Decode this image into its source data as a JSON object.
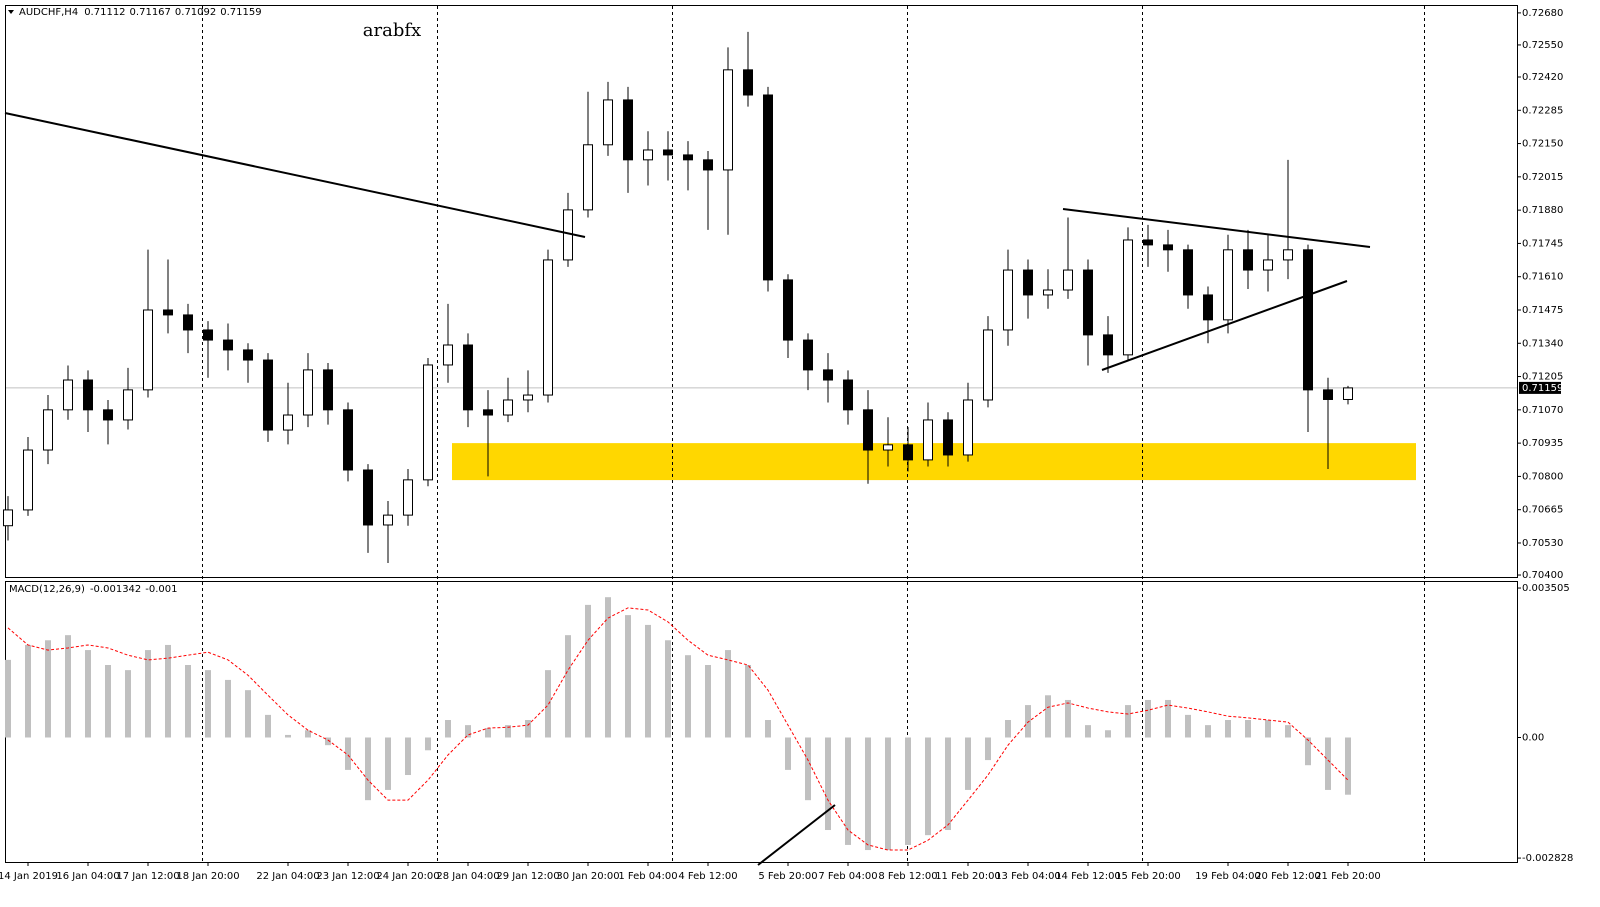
{
  "chart_data": [
    {
      "type": "candlestick",
      "symbol": "AUDCHF,H4",
      "annotation": "arabfx",
      "up_color": "#ffffff",
      "down_color": "#000000",
      "line_color": "#000000",
      "zone": [
        0.70785,
        0.70935
      ],
      "zone_color": "#ffd700",
      "ylim": [
        0.70392,
        0.72712
      ],
      "yticks": [
        {
          "value": 0.7268,
          "label": "0.72680"
        },
        {
          "value": 0.7255,
          "label": "0.72550"
        },
        {
          "value": 0.7242,
          "label": "0.72420"
        },
        0.72285,
        {
          "value": 0.7215,
          "label": "0.72150"
        },
        0.72015,
        {
          "value": 0.7188,
          "label": "0.71880"
        },
        0.71745,
        {
          "value": 0.7161,
          "label": "0.71610"
        },
        0.71475,
        {
          "value": 0.7134,
          "label": "0.71340"
        },
        0.71205,
        {
          "value": 0.7107,
          "label": "0.71070"
        },
        0.70935,
        {
          "value": 0.708,
          "label": "0.70800"
        },
        0.70665,
        {
          "value": 0.7053,
          "label": "0.70530"
        },
        {
          "value": 0.704,
          "label": "0.70400"
        }
      ],
      "categories": [
        null,
        "14 Jan 2019",
        null,
        null,
        "16 Jan 04:00",
        null,
        null,
        "17 Jan 12:00",
        null,
        null,
        "18 Jan 20:00",
        null,
        null,
        null,
        "22 Jan 04:00",
        null,
        null,
        "23 Jan 12:00",
        null,
        null,
        "24 Jan 20:00",
        null,
        null,
        "28 Jan 04:00",
        null,
        null,
        "29 Jan 12:00",
        null,
        null,
        "30 Jan 20:00",
        null,
        null,
        "1 Feb 04:00",
        null,
        null,
        "4 Feb 12:00",
        null,
        null,
        null,
        "5 Feb 20:00",
        null,
        null,
        "7 Feb 04:00",
        null,
        null,
        "8 Feb 12:00",
        null,
        null,
        "11 Feb 20:00",
        null,
        null,
        "13 Feb 04:00",
        null,
        null,
        "14 Feb 12:00",
        null,
        null,
        "15 Feb 20:00",
        null,
        null,
        null,
        "19 Feb 04:00",
        null,
        null,
        "20 Feb 12:00",
        null,
        null,
        "21 Feb 20:00"
      ],
      "ohlc": [
        [
          0.706,
          0.7072,
          0.7054,
          0.70664
        ],
        [
          0.70664,
          0.7096,
          0.7064,
          0.70907
        ],
        [
          0.70907,
          0.7113,
          0.7085,
          0.7107
        ],
        [
          0.7107,
          0.7125,
          0.7103,
          0.71191
        ],
        [
          0.71191,
          0.7123,
          0.7098,
          0.7107
        ],
        [
          0.7107,
          0.7111,
          0.7093,
          0.71029
        ],
        [
          0.71029,
          0.7124,
          0.7099,
          0.71151
        ],
        [
          0.71151,
          0.7172,
          0.7112,
          0.71475
        ],
        [
          0.71475,
          0.7168,
          0.7138,
          0.71455
        ],
        [
          0.71455,
          0.715,
          0.713,
          0.71394
        ],
        [
          0.71394,
          0.7143,
          0.712,
          0.71353
        ],
        [
          0.71353,
          0.7142,
          0.7123,
          0.71313
        ],
        [
          0.71313,
          0.7134,
          0.7118,
          0.71272
        ],
        [
          0.71272,
          0.713,
          0.7094,
          0.70988
        ],
        [
          0.70988,
          0.7118,
          0.7093,
          0.71049
        ],
        [
          0.71049,
          0.713,
          0.71,
          0.71232
        ],
        [
          0.71232,
          0.7126,
          0.7101,
          0.7107
        ],
        [
          0.7107,
          0.711,
          0.7078,
          0.70826
        ],
        [
          0.70826,
          0.7085,
          0.7049,
          0.70603
        ],
        [
          0.70603,
          0.707,
          0.70449,
          0.70643
        ],
        [
          0.70643,
          0.7083,
          0.706,
          0.70786
        ],
        [
          0.70786,
          0.7128,
          0.7076,
          0.71252
        ],
        [
          0.71252,
          0.715,
          0.7118,
          0.71333
        ],
        [
          0.71333,
          0.7138,
          0.71,
          0.7107
        ],
        [
          0.7107,
          0.7115,
          0.708,
          0.71049
        ],
        [
          0.71049,
          0.712,
          0.7102,
          0.7111
        ],
        [
          0.7111,
          0.7123,
          0.7106,
          0.7113
        ],
        [
          0.7113,
          0.7172,
          0.711,
          0.71678
        ],
        [
          0.71678,
          0.7195,
          0.7165,
          0.71881
        ],
        [
          0.71881,
          0.7236,
          0.7185,
          0.72145
        ],
        [
          0.72145,
          0.724,
          0.721,
          0.72327
        ],
        [
          0.72327,
          0.7238,
          0.7195,
          0.72084
        ],
        [
          0.72084,
          0.722,
          0.7198,
          0.72124
        ],
        [
          0.72124,
          0.722,
          0.72,
          0.72104
        ],
        [
          0.72104,
          0.7216,
          0.7196,
          0.72084
        ],
        [
          0.72084,
          0.7212,
          0.718,
          0.72043
        ],
        [
          0.72043,
          0.7254,
          0.7178,
          0.72449
        ],
        [
          0.72449,
          0.72603,
          0.723,
          0.72347
        ],
        [
          0.72347,
          0.7238,
          0.7155,
          0.71597
        ],
        [
          0.71597,
          0.7162,
          0.7128,
          0.71353
        ],
        [
          0.71353,
          0.7138,
          0.7115,
          0.71232
        ],
        [
          0.71232,
          0.713,
          0.711,
          0.71191
        ],
        [
          0.71191,
          0.7123,
          0.7101,
          0.7107
        ],
        [
          0.7107,
          0.7115,
          0.7077,
          0.70907
        ],
        [
          0.70907,
          0.7104,
          0.7084,
          0.70928
        ],
        [
          0.70928,
          0.71,
          0.7082,
          0.70867
        ],
        [
          0.70867,
          0.711,
          0.7084,
          0.71029
        ],
        [
          0.71029,
          0.7106,
          0.7084,
          0.70887
        ],
        [
          0.70887,
          0.7118,
          0.7086,
          0.7111
        ],
        [
          0.7111,
          0.7145,
          0.7108,
          0.71394
        ],
        [
          0.71394,
          0.7172,
          0.7133,
          0.71637
        ],
        [
          0.71637,
          0.7168,
          0.7144,
          0.71536
        ],
        [
          0.71536,
          0.7164,
          0.7148,
          0.71556
        ],
        [
          0.71556,
          0.7185,
          0.7152,
          0.71637
        ],
        [
          0.71637,
          0.7168,
          0.7125,
          0.71374
        ],
        [
          0.71374,
          0.7145,
          0.7122,
          0.71293
        ],
        [
          0.71293,
          0.7181,
          0.7127,
          0.71759
        ],
        [
          0.71759,
          0.7182,
          0.7165,
          0.71739
        ],
        [
          0.71739,
          0.718,
          0.7163,
          0.71719
        ],
        [
          0.71719,
          0.7174,
          0.7148,
          0.71536
        ],
        [
          0.71536,
          0.7157,
          0.7134,
          0.71435
        ],
        [
          0.71435,
          0.7178,
          0.7138,
          0.71719
        ],
        [
          0.71719,
          0.718,
          0.7156,
          0.71637
        ],
        [
          0.71637,
          0.7178,
          0.7155,
          0.71678
        ],
        [
          0.71678,
          0.72084,
          0.716,
          0.71719
        ],
        [
          0.71719,
          0.7174,
          0.7098,
          0.71151
        ],
        [
          0.71151,
          0.712,
          0.7083,
          0.71112
        ],
        [
          0.71112,
          0.71167,
          0.71092,
          0.71159
        ]
      ]
    },
    {
      "type": "macd",
      "title": "MACD(12,26,9)",
      "histogram_color": "#c0c0c0",
      "signal_color": "#ff0000",
      "ylim": [
        -0.00292,
        0.00367
      ],
      "yticks": [
        0.003505,
        {
          "value": 0,
          "label": "0.00"
        },
        -0.002828
      ],
      "histogram": [
        0.00182,
        0.00217,
        0.00228,
        0.0024,
        0.00205,
        0.0017,
        0.00158,
        0.00205,
        0.00217,
        0.0017,
        0.00158,
        0.00135,
        0.00111,
        0.00053,
        6e-05,
        0.00017,
        -0.00018,
        -0.00076,
        -0.00147,
        -0.00123,
        -0.00088,
        -0.0003,
        0.00041,
        0.00029,
        0.00022,
        0.00029,
        0.00041,
        0.00158,
        0.0024,
        0.00311,
        0.00329,
        0.00287,
        0.00264,
        0.00228,
        0.00193,
        0.0017,
        0.00205,
        0.0017,
        0.00041,
        -0.00076,
        -0.00147,
        -0.00217,
        -0.00252,
        -0.00264,
        -0.00264,
        -0.00252,
        -0.00229,
        -0.00217,
        -0.00123,
        -0.00053,
        0.00041,
        0.00076,
        0.00099,
        0.00088,
        0.00029,
        0.00017,
        0.00076,
        0.00088,
        0.00088,
        0.00053,
        0.00029,
        0.00041,
        0.00041,
        0.00041,
        0.00029,
        -0.00065,
        -0.00123,
        -0.001342
      ],
      "signal": [
        0.00257,
        0.00217,
        0.00205,
        0.0021,
        0.00217,
        0.0021,
        0.00193,
        0.00182,
        0.00186,
        0.00193,
        0.002,
        0.00182,
        0.00146,
        0.00099,
        0.00053,
        0.00017,
        -6e-05,
        -0.00041,
        -0.001,
        -0.00147,
        -0.00147,
        -0.001,
        -0.00041,
        6e-05,
        0.00022,
        0.00024,
        0.00029,
        0.00076,
        0.00158,
        0.00228,
        0.0028,
        0.00304,
        0.00299,
        0.00271,
        0.00228,
        0.00193,
        0.00182,
        0.0017,
        0.00111,
        0.00029,
        -0.00053,
        -0.00147,
        -0.00217,
        -0.00252,
        -0.00264,
        -0.00264,
        -0.00241,
        -0.00205,
        -0.00147,
        -0.00088,
        -0.00018,
        0.00036,
        0.00071,
        0.00081,
        0.00069,
        0.0006,
        0.00055,
        0.00064,
        0.00076,
        0.00069,
        0.0006,
        0.0005,
        0.00046,
        0.00041,
        0.00036,
        -6e-05,
        -0.00053,
        -0.001
      ]
    }
  ]
}
